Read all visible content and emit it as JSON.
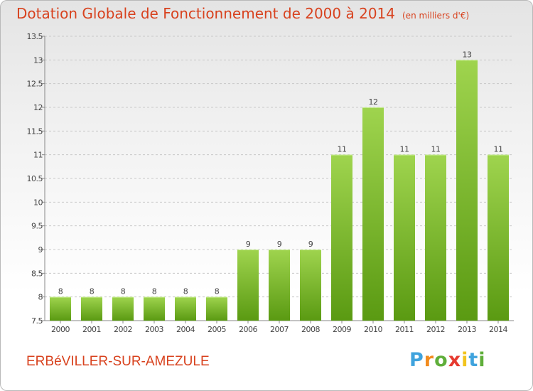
{
  "header": {
    "title": "Dotation Globale de Fonctionnement de 2000 à 2014",
    "unit_note": "(en milliers d'€)"
  },
  "footer": {
    "commune": "ERBéVILLER-SUR-AMEZULE",
    "logo": {
      "text": "Proxiti",
      "letters": [
        "P",
        "r",
        "o",
        "x",
        "i",
        "t",
        "i"
      ]
    }
  },
  "colors": {
    "title": "#d8421e",
    "bar_light": "#9fd44e",
    "bar_dark": "#5a9a12",
    "grid": "#c8c8c8"
  },
  "chart_data": {
    "type": "bar",
    "title": "Dotation Globale de Fonctionnement de 2000 à 2014",
    "subtitle": "(en milliers d'€)",
    "categories": [
      "2000",
      "2001",
      "2002",
      "2003",
      "2004",
      "2005",
      "2006",
      "2007",
      "2008",
      "2009",
      "2010",
      "2011",
      "2012",
      "2013",
      "2014"
    ],
    "values": [
      8,
      8,
      8,
      8,
      8,
      8,
      9,
      9,
      9,
      11,
      12,
      11,
      11,
      13,
      11
    ],
    "data_labels": [
      "8",
      "8",
      "8",
      "8",
      "8",
      "8",
      "9",
      "9",
      "9",
      "11",
      "12",
      "11",
      "11",
      "13",
      "11"
    ],
    "ylim": [
      7.5,
      13.5
    ],
    "yticks": [
      "7.5",
      "8",
      "8.5",
      "9",
      "9.5",
      "10",
      "10.5",
      "11",
      "11.5",
      "12",
      "12.5",
      "13",
      "13.5"
    ],
    "grid": true,
    "xlabel": "",
    "ylabel": ""
  }
}
